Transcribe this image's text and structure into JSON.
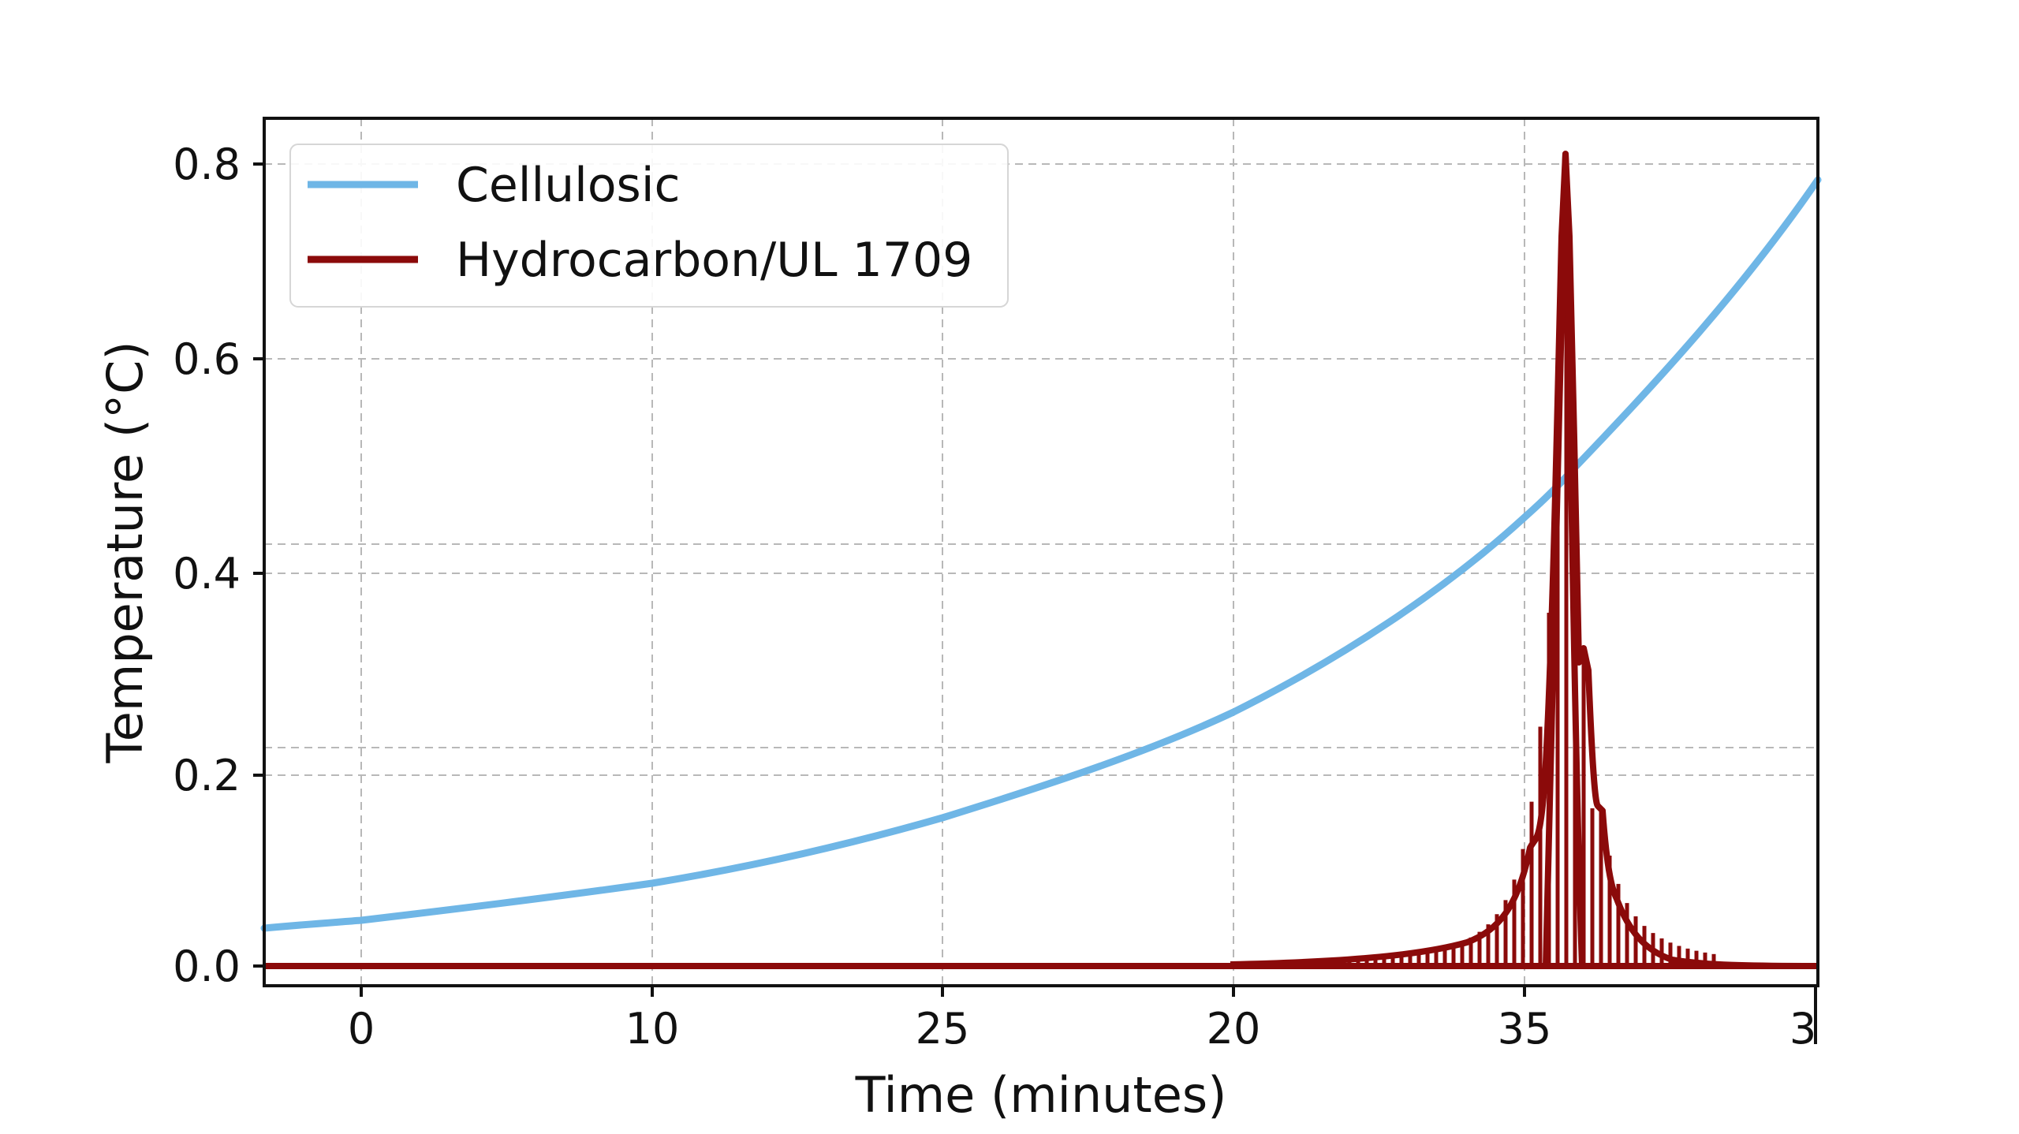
{
  "chart_data": {
    "type": "line",
    "title": "",
    "xlabel": "Time (minutes)",
    "ylabel": "Temperature (°C)",
    "x_tick_labels": [
      "0",
      "10",
      "25",
      "20",
      "35",
      "3"
    ],
    "y_tick_labels": [
      "0.0",
      "0.2",
      "0.4",
      "0.6",
      "0.8"
    ],
    "xlim_tick_units": [
      -0.33,
      5.0
    ],
    "ylim": [
      -0.02,
      0.85
    ],
    "grid": true,
    "grid_style": "dashed",
    "legend_position": "upper left",
    "series": [
      {
        "name": "Cellulosic",
        "color": "#6fb6e6",
        "x_tick_units": [
          -0.33,
          0,
          0.5,
          1,
          1.5,
          2,
          2.5,
          3,
          3.5,
          4,
          4.2,
          4.5,
          4.75,
          5.0
        ],
        "values": [
          0.04,
          0.05,
          0.068,
          0.09,
          0.12,
          0.155,
          0.2,
          0.26,
          0.345,
          0.45,
          0.5,
          0.6,
          0.69,
          0.78
        ]
      },
      {
        "name": "Hydrocarbon/UL 1709",
        "color": "#8b0a0a",
        "x_tick_units": [
          -0.33,
          0,
          1,
          2,
          3,
          3.5,
          3.7,
          3.85,
          3.95,
          4.0,
          4.05,
          4.1,
          4.14,
          4.18,
          4.2,
          4.25,
          4.3,
          4.35,
          4.4,
          4.5,
          4.65,
          4.8,
          5.0
        ],
        "values": [
          0.0,
          0.0,
          0.0,
          0.0,
          0.0,
          0.005,
          0.01,
          0.02,
          0.04,
          0.07,
          0.13,
          0.3,
          0.81,
          0.45,
          0.32,
          0.22,
          0.17,
          0.08,
          0.04,
          0.015,
          0.005,
          0.0,
          0.0
        ],
        "note": "dense oscillating comb of vertical lines between ~3.6 and ~4.6 tick units, envelope shown"
      }
    ]
  },
  "axes": {
    "x_label": "Time (minutes)",
    "y_label": "Temperature (°C)",
    "x_ticks": [
      "0",
      "10",
      "25",
      "20",
      "35",
      "3"
    ],
    "y_ticks": [
      "0.8",
      "0.6",
      "0.4",
      "0.2",
      "0.0"
    ]
  },
  "legend": {
    "items": [
      {
        "label": "Cellulosic",
        "color": "#6fb6e6"
      },
      {
        "label": "Hydrocarbon/UL 1709",
        "color": "#8b0a0a"
      }
    ]
  }
}
